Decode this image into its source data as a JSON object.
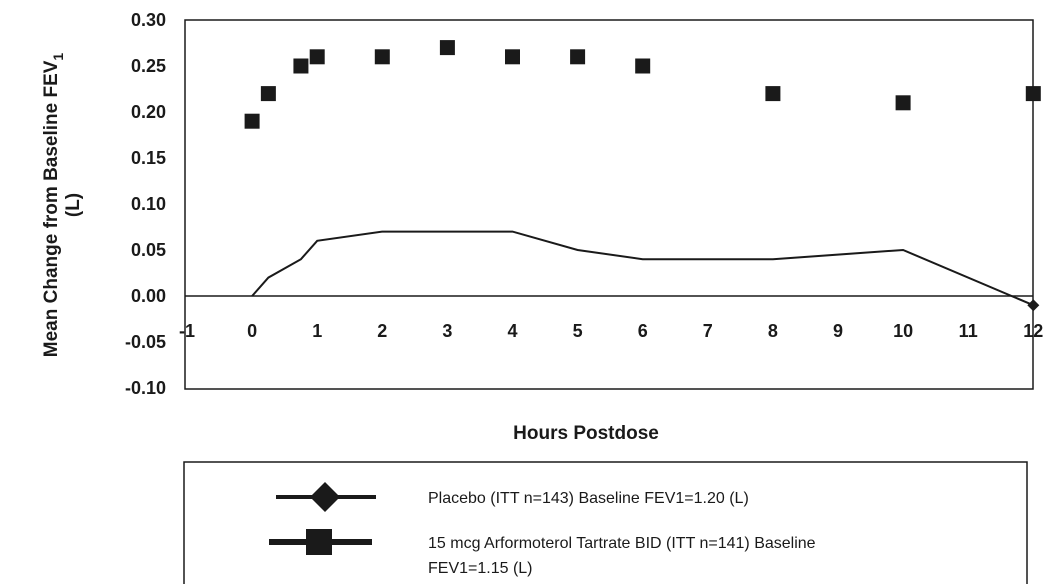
{
  "chart_data": {
    "type": "line",
    "xlabel": "Hours Postdose",
    "ylabel": "Mean Change from Baseline FEV",
    "ylabel_subscript": "1",
    "ylabel_unit": "(L)",
    "xlim": [
      -1,
      12
    ],
    "ylim": [
      -0.1,
      0.3
    ],
    "x_ticks": [
      "-1",
      "0",
      "1",
      "2",
      "3",
      "4",
      "5",
      "6",
      "7",
      "8",
      "9",
      "10",
      "11",
      "12"
    ],
    "y_ticks": [
      "0.30",
      "0.25",
      "0.20",
      "0.15",
      "0.10",
      "0.05",
      "0.00",
      "-0.05",
      "-0.10"
    ],
    "grid": false,
    "legend_position": "bottom",
    "series": [
      {
        "name": "Placebo (ITT n=143) Baseline FEV1=1.20 (L)",
        "marker": "diamond",
        "line": true,
        "color": "#1a1a1a",
        "x": [
          0,
          0.25,
          0.75,
          1,
          2,
          3,
          4,
          5,
          6,
          8,
          10,
          12
        ],
        "y": [
          0.0,
          0.02,
          0.04,
          0.06,
          0.07,
          0.07,
          0.07,
          0.05,
          0.04,
          0.04,
          0.05,
          -0.01
        ]
      },
      {
        "name_lines": [
          "15 mcg Arformoterol Tartrate BID (ITT n=141) Baseline",
          "FEV1=1.15 (L)"
        ],
        "marker": "square",
        "line": false,
        "color": "#1a1a1a",
        "x": [
          0,
          0.25,
          0.75,
          1,
          2,
          3,
          4,
          5,
          6,
          8,
          10,
          12
        ],
        "y": [
          0.19,
          0.22,
          0.25,
          0.26,
          0.26,
          0.27,
          0.26,
          0.26,
          0.25,
          0.22,
          0.21,
          0.22
        ]
      }
    ]
  }
}
